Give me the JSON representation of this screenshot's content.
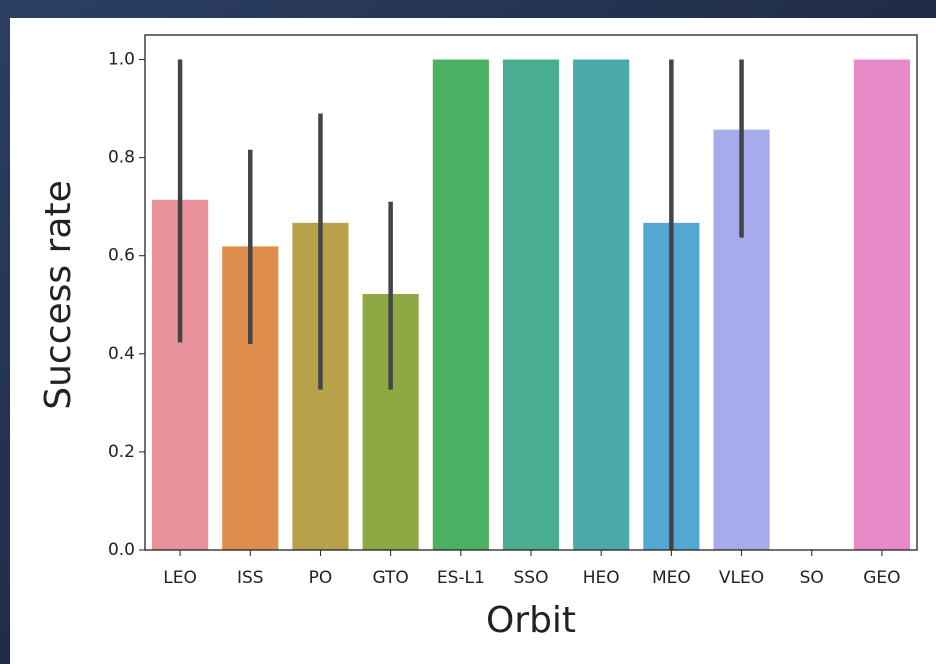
{
  "chart_data": {
    "type": "bar",
    "xlabel": "Orbit",
    "ylabel": "Success rate",
    "categories": [
      "LEO",
      "ISS",
      "PO",
      "GTO",
      "ES-L1",
      "SSO",
      "HEO",
      "MEO",
      "VLEO",
      "SO",
      "GEO"
    ],
    "values": [
      0.714,
      0.619,
      0.667,
      0.522,
      1.0,
      1.0,
      1.0,
      0.667,
      0.857,
      0.0,
      1.0
    ],
    "ci_low": [
      0.423,
      0.42,
      0.327,
      0.327,
      null,
      null,
      null,
      0.0,
      0.637,
      null,
      null
    ],
    "ci_high": [
      1.0,
      0.816,
      0.89,
      0.71,
      null,
      null,
      null,
      1.0,
      1.0,
      null,
      null
    ],
    "colors": [
      "#e8939c",
      "#de8d4c",
      "#b7a24b",
      "#8ea843",
      "#4cb062",
      "#49ad91",
      "#4aa9a9",
      "#52a7d3",
      "#a6aceb",
      "#c89de8",
      "#e88ac8"
    ],
    "error_color": "#444444",
    "ylim": [
      0,
      1.05
    ],
    "yticks": [
      {
        "value": 0,
        "label": "0.0"
      },
      {
        "value": 0.2,
        "label": "0.2"
      },
      {
        "value": 0.4,
        "label": "0.4"
      },
      {
        "value": 0.6,
        "label": "0.6"
      },
      {
        "value": 0.8,
        "label": "0.8"
      },
      {
        "value": 1,
        "label": "1.0"
      }
    ]
  }
}
